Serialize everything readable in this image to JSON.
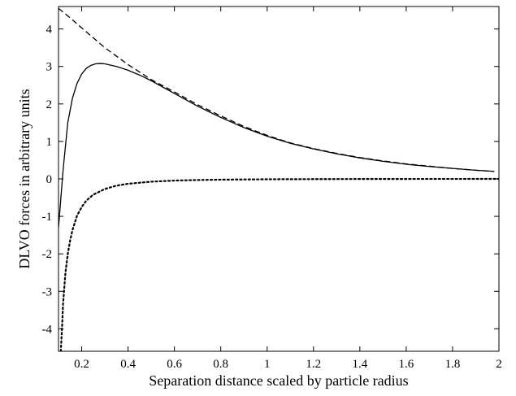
{
  "chart_data": {
    "type": "line",
    "title": "",
    "xlabel": "Separation distance scaled by particle radius",
    "ylabel": "DLVO forces in arbitrary units",
    "xlim": [
      0.1,
      2.0
    ],
    "ylim": [
      -4.6,
      4.6
    ],
    "xticks": [
      0.2,
      0.4,
      0.6,
      0.8,
      1,
      1.2,
      1.4,
      1.6,
      1.8,
      2
    ],
    "xtick_labels": [
      "0.2",
      "0.4",
      "0.6",
      "0.8",
      "1",
      "1.2",
      "1.4",
      "1.6",
      "1.8",
      "2"
    ],
    "yticks": [
      -4,
      -3,
      -2,
      -1,
      0,
      1,
      2,
      3,
      4
    ],
    "ytick_labels": [
      "-4",
      "-3",
      "-2",
      "-1",
      "0",
      "1",
      "2",
      "3",
      "4"
    ],
    "grid": false,
    "legend": "none",
    "series": [
      {
        "style": "solid",
        "x": [
          0.1,
          0.12,
          0.14,
          0.16,
          0.18,
          0.2,
          0.22,
          0.24,
          0.26,
          0.28,
          0.3,
          0.35,
          0.4,
          0.45,
          0.5,
          0.6,
          0.7,
          0.8,
          0.9,
          1.0,
          1.1,
          1.2,
          1.3,
          1.4,
          1.5,
          1.6,
          1.7,
          1.8,
          1.9,
          1.98
        ],
        "y": [
          -1.3,
          0.25,
          1.5,
          2.15,
          2.55,
          2.8,
          2.95,
          3.03,
          3.07,
          3.08,
          3.07,
          3.0,
          2.9,
          2.77,
          2.62,
          2.28,
          1.94,
          1.64,
          1.37,
          1.14,
          0.95,
          0.8,
          0.67,
          0.56,
          0.47,
          0.39,
          0.33,
          0.28,
          0.23,
          0.2
        ]
      },
      {
        "style": "dashed",
        "x": [
          0.1,
          0.15,
          0.2,
          0.3,
          0.4,
          0.5,
          0.6,
          0.7,
          0.8,
          0.9,
          1.0,
          1.1,
          1.2,
          1.3,
          1.4,
          1.5,
          1.6,
          1.7,
          1.8,
          1.9,
          1.98
        ],
        "y": [
          4.55,
          4.3,
          4.03,
          3.5,
          3.05,
          2.65,
          2.32,
          1.98,
          1.68,
          1.4,
          1.16,
          0.96,
          0.81,
          0.68,
          0.57,
          0.48,
          0.4,
          0.34,
          0.28,
          0.23,
          0.2
        ]
      },
      {
        "style": "dotted",
        "x": [
          0.11,
          0.115,
          0.12,
          0.13,
          0.14,
          0.15,
          0.16,
          0.18,
          0.2,
          0.22,
          0.25,
          0.3,
          0.35,
          0.4,
          0.5,
          0.6,
          0.7,
          0.8,
          1.0,
          1.2,
          1.4,
          1.6,
          1.8,
          2.0
        ],
        "y": [
          -4.6,
          -4.0,
          -3.3,
          -2.5,
          -2.0,
          -1.65,
          -1.37,
          -0.98,
          -0.75,
          -0.58,
          -0.42,
          -0.27,
          -0.18,
          -0.13,
          -0.075,
          -0.045,
          -0.03,
          -0.02,
          -0.01,
          -0.006,
          -0.003,
          -0.002,
          -0.001,
          0.0
        ]
      }
    ]
  },
  "colors": {
    "line": "#000000",
    "axis": "#000000",
    "background": "#ffffff"
  }
}
